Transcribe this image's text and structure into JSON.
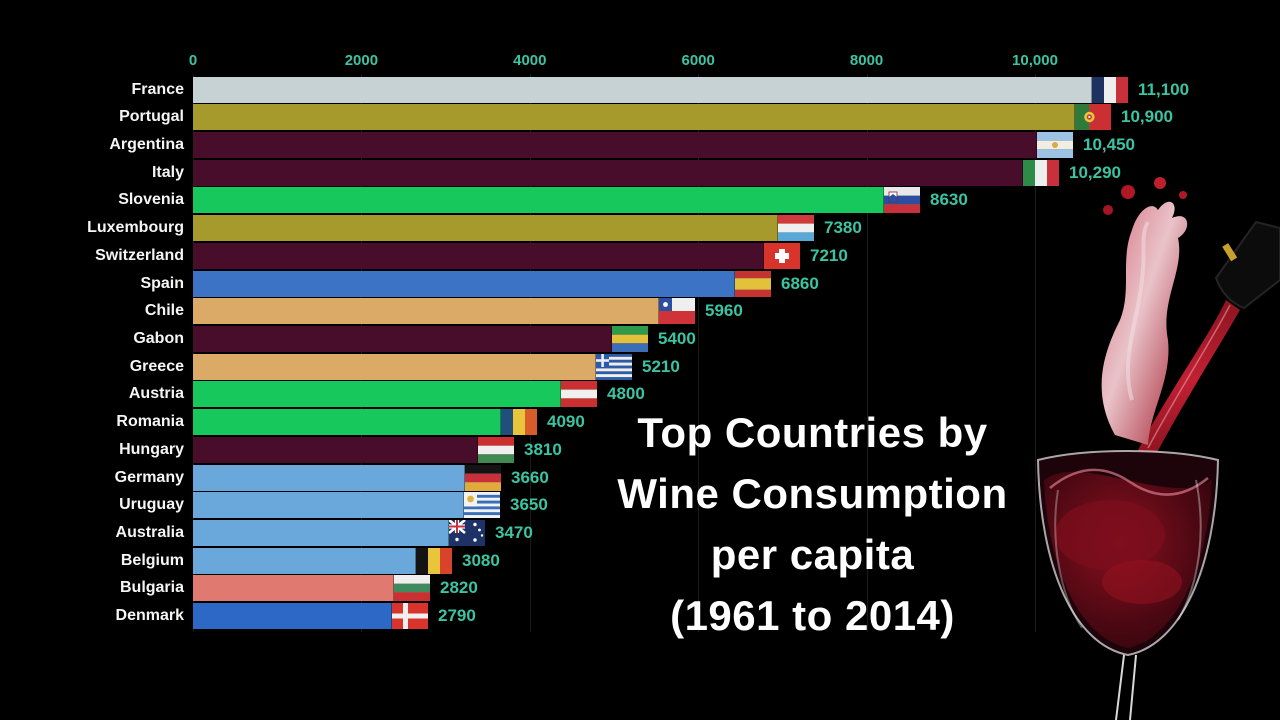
{
  "frame": {
    "background": "#000000"
  },
  "title": {
    "lines": [
      "Top Countries by",
      "Wine Consumption",
      "per capita",
      "(1961 to 2014)"
    ],
    "color": "#ffffff"
  },
  "axis": {
    "text_color": "#3cc3a2",
    "gridline_color": "rgba(255,255,255,0.10)",
    "ticks": [
      {
        "value": 0,
        "label": "0"
      },
      {
        "value": 2000,
        "label": "2000"
      },
      {
        "value": 4000,
        "label": "4000"
      },
      {
        "value": 6000,
        "label": "6000"
      },
      {
        "value": 8000,
        "label": "8000"
      },
      {
        "value": 10000,
        "label": "10,000"
      }
    ]
  },
  "palette": {
    "silver": "#c7d2d4",
    "olive": "#a59a2b",
    "maroon": "#490d2c",
    "green": "#17c85d",
    "blue": "#3d73c5",
    "tan": "#dcaa67",
    "lightblue": "#6aa8dc",
    "salmon": "#e0796f",
    "royal": "#2e68c6"
  },
  "value_text_color": "#3cc3a2",
  "chart_data": {
    "type": "bar",
    "orientation": "horizontal",
    "title": "Top Countries by Wine Consumption per capita (1961 to 2014)",
    "xlabel": "",
    "ylabel": "",
    "xlim": [
      0,
      12900
    ],
    "grid": true,
    "legend": false,
    "categories": [
      "France",
      "Portugal",
      "Argentina",
      "Italy",
      "Slovenia",
      "Luxembourg",
      "Switzerland",
      "Spain",
      "Chile",
      "Gabon",
      "Greece",
      "Austria",
      "Romania",
      "Hungary",
      "Germany",
      "Uruguay",
      "Australia",
      "Belgium",
      "Bulgaria",
      "Denmark"
    ],
    "values": [
      11100,
      10900,
      10450,
      10290,
      8630,
      7380,
      7210,
      6860,
      5960,
      5400,
      5210,
      4800,
      4090,
      3810,
      3660,
      3650,
      3470,
      3080,
      2820,
      2790
    ],
    "bars": [
      {
        "country": "France",
        "value": 11100,
        "label": "11,100",
        "color": "silver",
        "flag": {
          "name": "france-flag-icon",
          "type": "v",
          "colors": [
            "#1d3260",
            "#eeeeee",
            "#c8303c"
          ]
        }
      },
      {
        "country": "Portugal",
        "value": 10900,
        "label": "10,900",
        "color": "olive",
        "flag": {
          "name": "portugal-flag-icon",
          "type": "v",
          "colors": [
            "#2d7a3a",
            "#cc2f32"
          ],
          "weights": [
            0.4,
            0.6
          ],
          "emblem": "portugal"
        }
      },
      {
        "country": "Argentina",
        "value": 10450,
        "label": "10,450",
        "color": "maroon",
        "flag": {
          "name": "argentina-flag-icon",
          "type": "h",
          "colors": [
            "#9cc3e4",
            "#f0ede4",
            "#9cc3e4"
          ],
          "emblem": "sun-center"
        }
      },
      {
        "country": "Italy",
        "value": 10290,
        "label": "10,290",
        "color": "maroon",
        "flag": {
          "name": "italy-flag-icon",
          "type": "v",
          "colors": [
            "#2e8b47",
            "#eeeeee",
            "#c8303c"
          ]
        }
      },
      {
        "country": "Slovenia",
        "value": 8630,
        "label": "8630",
        "color": "green",
        "flag": {
          "name": "slovenia-flag-icon",
          "type": "h",
          "colors": [
            "#e9e9e9",
            "#2b4f9e",
            "#c8303c"
          ],
          "emblem": "slovenia-crest"
        }
      },
      {
        "country": "Luxembourg",
        "value": 7380,
        "label": "7380",
        "color": "olive",
        "flag": {
          "name": "luxembourg-flag-icon",
          "type": "h",
          "colors": [
            "#d03a3c",
            "#efefef",
            "#5aa8d8"
          ]
        }
      },
      {
        "country": "Switzerland",
        "value": 7210,
        "label": "7210",
        "color": "maroon",
        "flag": {
          "name": "switzerland-flag-icon",
          "type": "solid",
          "colors": [
            "#d8342c"
          ],
          "emblem": "white-cross"
        }
      },
      {
        "country": "Spain",
        "value": 6860,
        "label": "6860",
        "color": "blue",
        "flag": {
          "name": "spain-flag-icon",
          "type": "h",
          "colors": [
            "#c43431",
            "#e3c13b",
            "#c43431"
          ],
          "weights": [
            0.28,
            0.44,
            0.28
          ]
        }
      },
      {
        "country": "Chile",
        "value": 5960,
        "label": "5960",
        "color": "tan",
        "flag": {
          "name": "chile-flag-icon",
          "type": "chile",
          "colors": [
            "#efefef",
            "#cf3339",
            "#2b4f9e"
          ]
        }
      },
      {
        "country": "Gabon",
        "value": 5400,
        "label": "5400",
        "color": "maroon",
        "flag": {
          "name": "gabon-flag-icon",
          "type": "h",
          "colors": [
            "#2e9a4a",
            "#e3c13b",
            "#3a6fb8"
          ]
        }
      },
      {
        "country": "Greece",
        "value": 5210,
        "label": "5210",
        "color": "tan",
        "flag": {
          "name": "greece-flag-icon",
          "type": "greece",
          "colors": [
            "#2b5caa",
            "#eeeeee"
          ]
        }
      },
      {
        "country": "Austria",
        "value": 4800,
        "label": "4800",
        "color": "green",
        "flag": {
          "name": "austria-flag-icon",
          "type": "h",
          "colors": [
            "#cc2f32",
            "#efefef",
            "#cc2f32"
          ]
        }
      },
      {
        "country": "Romania",
        "value": 4090,
        "label": "4090",
        "color": "green",
        "flag": {
          "name": "romania-flag-icon",
          "type": "v",
          "colors": [
            "#1f4f7a",
            "#e8c53a",
            "#d85c28"
          ]
        }
      },
      {
        "country": "Hungary",
        "value": 3810,
        "label": "3810",
        "color": "maroon",
        "flag": {
          "name": "hungary-flag-icon",
          "type": "h",
          "colors": [
            "#cc2f32",
            "#efefef",
            "#3f8a4f"
          ]
        }
      },
      {
        "country": "Germany",
        "value": 3660,
        "label": "3660",
        "color": "lightblue",
        "flag": {
          "name": "germany-flag-icon",
          "type": "h",
          "colors": [
            "#141414",
            "#c8303c",
            "#e2a93b"
          ]
        }
      },
      {
        "country": "Uruguay",
        "value": 3650,
        "label": "3650",
        "color": "lightblue",
        "flag": {
          "name": "uruguay-flag-icon",
          "type": "uruguay",
          "colors": [
            "#f2f2f2",
            "#3a6fb8"
          ],
          "sun": "#e0b33c"
        }
      },
      {
        "country": "Australia",
        "value": 3470,
        "label": "3470",
        "color": "lightblue",
        "flag": {
          "name": "australia-flag-icon",
          "type": "australia",
          "colors": [
            "#1e3268"
          ]
        }
      },
      {
        "country": "Belgium",
        "value": 3080,
        "label": "3080",
        "color": "lightblue",
        "flag": {
          "name": "belgium-flag-icon",
          "type": "v",
          "colors": [
            "#141414",
            "#e8c53a",
            "#d8432c"
          ]
        }
      },
      {
        "country": "Bulgaria",
        "value": 2820,
        "label": "2820",
        "color": "salmon",
        "flag": {
          "name": "bulgaria-flag-icon",
          "type": "h",
          "colors": [
            "#efefef",
            "#3f8a5f",
            "#cc2f32"
          ]
        }
      },
      {
        "country": "Denmark",
        "value": 2790,
        "label": "2790",
        "color": "royal",
        "flag": {
          "name": "denmark-flag-icon",
          "type": "nordic",
          "colors": [
            "#d8342c",
            "#efefef"
          ]
        }
      }
    ]
  }
}
